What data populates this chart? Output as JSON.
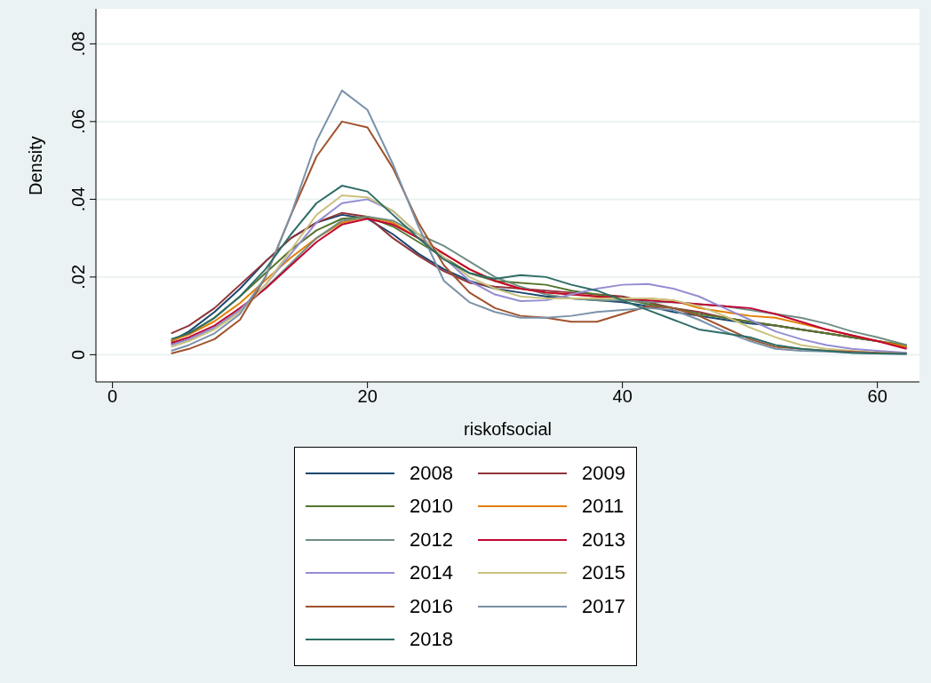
{
  "chart_data": {
    "type": "line",
    "xlabel": "riskofsocial",
    "ylabel": "Density",
    "x": [
      4.6,
      6,
      8,
      10,
      12,
      14,
      16,
      18,
      20,
      22,
      24,
      26,
      28,
      30,
      32,
      34,
      36,
      38,
      40,
      42,
      44,
      46,
      48,
      50,
      52,
      54,
      56,
      58,
      60,
      62.3
    ],
    "xlim": [
      -1.3,
      63.3
    ],
    "xticks": [
      0,
      20,
      40,
      60
    ],
    "ylim": [
      -0.007,
      0.089
    ],
    "yticks": [
      {
        "value": 0,
        "label": "0"
      },
      {
        "value": 0.02,
        "label": ".02"
      },
      {
        "value": 0.04,
        "label": ".04"
      },
      {
        "value": 0.06,
        "label": ".06"
      },
      {
        "value": 0.08,
        "label": ".08"
      }
    ],
    "grid": "y",
    "legend": "bottom",
    "series": [
      {
        "name": "2008",
        "color": "#1a476f",
        "values": [
          0.0035,
          0.006,
          0.011,
          0.017,
          0.024,
          0.03,
          0.034,
          0.036,
          0.035,
          0.031,
          0.026,
          0.022,
          0.019,
          0.017,
          0.016,
          0.015,
          0.0145,
          0.014,
          0.0135,
          0.0125,
          0.011,
          0.01,
          0.009,
          0.008,
          0.0075,
          0.0065,
          0.0055,
          0.0045,
          0.0035,
          0.002
        ]
      },
      {
        "name": "2009",
        "color": "#90353b",
        "values": [
          0.0055,
          0.0075,
          0.012,
          0.018,
          0.024,
          0.03,
          0.034,
          0.0365,
          0.0355,
          0.03,
          0.0255,
          0.0215,
          0.0185,
          0.0175,
          0.017,
          0.0165,
          0.016,
          0.0155,
          0.015,
          0.0135,
          0.012,
          0.011,
          0.0095,
          0.0085,
          0.0075,
          0.0065,
          0.0055,
          0.0045,
          0.0035,
          0.002
        ]
      },
      {
        "name": "2010",
        "color": "#55752f",
        "values": [
          0.0035,
          0.0055,
          0.0095,
          0.015,
          0.021,
          0.027,
          0.032,
          0.035,
          0.0355,
          0.033,
          0.029,
          0.025,
          0.021,
          0.019,
          0.0185,
          0.018,
          0.0165,
          0.0155,
          0.0145,
          0.013,
          0.012,
          0.0105,
          0.0095,
          0.0085,
          0.0075,
          0.0065,
          0.0055,
          0.0045,
          0.0035,
          0.0025
        ]
      },
      {
        "name": "2011",
        "color": "#e37e00",
        "values": [
          0.0036,
          0.0052,
          0.0086,
          0.0133,
          0.0192,
          0.025,
          0.03,
          0.034,
          0.0355,
          0.034,
          0.03,
          0.026,
          0.022,
          0.019,
          0.017,
          0.016,
          0.0155,
          0.015,
          0.0145,
          0.0145,
          0.014,
          0.012,
          0.011,
          0.01,
          0.0095,
          0.008,
          0.0065,
          0.005,
          0.0035,
          0.002
        ]
      },
      {
        "name": "2012",
        "color": "#6e8e84",
        "values": [
          0.0026,
          0.004,
          0.007,
          0.0113,
          0.0172,
          0.0235,
          0.03,
          0.0345,
          0.0355,
          0.0345,
          0.031,
          0.028,
          0.024,
          0.02,
          0.0175,
          0.0155,
          0.0145,
          0.014,
          0.014,
          0.0135,
          0.0135,
          0.013,
          0.0125,
          0.0115,
          0.0105,
          0.0095,
          0.008,
          0.006,
          0.0045,
          0.0025
        ]
      },
      {
        "name": "2013",
        "color": "#c10534",
        "values": [
          0.003,
          0.0045,
          0.0075,
          0.012,
          0.017,
          0.023,
          0.029,
          0.0335,
          0.035,
          0.0335,
          0.03,
          0.026,
          0.022,
          0.019,
          0.017,
          0.016,
          0.0155,
          0.015,
          0.0145,
          0.014,
          0.0135,
          0.013,
          0.0125,
          0.012,
          0.0105,
          0.0085,
          0.0065,
          0.005,
          0.0035,
          0.0015
        ]
      },
      {
        "name": "2014",
        "color": "#938dd2",
        "values": [
          0.0025,
          0.004,
          0.007,
          0.0115,
          0.018,
          0.026,
          0.034,
          0.039,
          0.04,
          0.037,
          0.031,
          0.025,
          0.019,
          0.0155,
          0.0138,
          0.014,
          0.0155,
          0.017,
          0.018,
          0.0182,
          0.017,
          0.015,
          0.012,
          0.009,
          0.006,
          0.004,
          0.0025,
          0.0015,
          0.001,
          0.0005
        ]
      },
      {
        "name": "2015",
        "color": "#cac27e",
        "values": [
          0.002,
          0.0035,
          0.0065,
          0.011,
          0.018,
          0.027,
          0.036,
          0.041,
          0.0405,
          0.037,
          0.031,
          0.025,
          0.02,
          0.017,
          0.015,
          0.0145,
          0.0145,
          0.0145,
          0.0145,
          0.0145,
          0.014,
          0.0125,
          0.01,
          0.007,
          0.0045,
          0.0025,
          0.0015,
          0.001,
          0.0005,
          0.0003
        ]
      },
      {
        "name": "2016",
        "color": "#a0522d",
        "values": [
          0.0003,
          0.0015,
          0.004,
          0.009,
          0.02,
          0.036,
          0.051,
          0.06,
          0.0585,
          0.048,
          0.034,
          0.023,
          0.016,
          0.012,
          0.01,
          0.0095,
          0.0085,
          0.0085,
          0.0105,
          0.0125,
          0.012,
          0.01,
          0.007,
          0.004,
          0.002,
          0.0015,
          0.001,
          0.0008,
          0.0005,
          0.0003
        ]
      },
      {
        "name": "2017",
        "color": "#7b92a8",
        "values": [
          0.001,
          0.0025,
          0.0055,
          0.0105,
          0.02,
          0.036,
          0.055,
          0.068,
          0.063,
          0.049,
          0.033,
          0.019,
          0.0135,
          0.011,
          0.0095,
          0.0095,
          0.01,
          0.011,
          0.0115,
          0.012,
          0.0115,
          0.009,
          0.006,
          0.0035,
          0.0015,
          0.001,
          0.0008,
          0.0005,
          0.0003,
          0.0002
        ]
      },
      {
        "name": "2018",
        "color": "#2d6d66",
        "values": [
          0.004,
          0.0055,
          0.0095,
          0.015,
          0.022,
          0.031,
          0.039,
          0.0435,
          0.042,
          0.036,
          0.03,
          0.0245,
          0.021,
          0.0195,
          0.0205,
          0.02,
          0.018,
          0.0165,
          0.014,
          0.0115,
          0.009,
          0.0065,
          0.0055,
          0.0045,
          0.0025,
          0.0015,
          0.001,
          0.0005,
          0.0003,
          0.0002
        ]
      }
    ]
  }
}
